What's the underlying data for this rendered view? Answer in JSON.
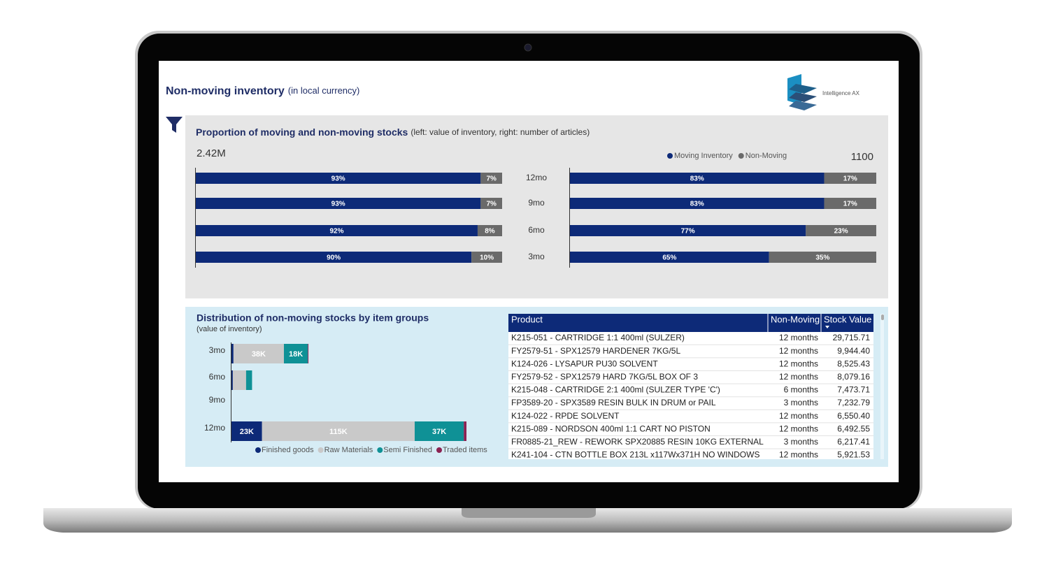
{
  "header": {
    "title": "Non-moving inventory",
    "subtitle": "(in local currency)",
    "logo_text": "Intelligence AX"
  },
  "chart_data": [
    {
      "type": "bar",
      "orientation": "horizontal",
      "stacked": true,
      "title": "Proportion of moving and non-moving stocks",
      "subtitle": "(left:  value of inventory, right: number of articles)",
      "total": {
        "value": 2420000,
        "label": "2.42M"
      },
      "categories": [
        "12mo",
        "9mo",
        "6mo",
        "3mo"
      ],
      "series": [
        {
          "name": "Moving Inventory",
          "color": "#0d2a78",
          "values": [
            93,
            93,
            92,
            90
          ],
          "value_labels": [
            "93%",
            "93%",
            "92%",
            "90%"
          ]
        },
        {
          "name": "Non-Moving",
          "color": "#6a6a6a",
          "values": [
            7,
            7,
            8,
            10
          ],
          "value_labels": [
            "7%",
            "7%",
            "8%",
            "10%"
          ]
        }
      ]
    },
    {
      "type": "bar",
      "orientation": "horizontal",
      "stacked": true,
      "total": 1100,
      "series": [
        {
          "color": "#0d2a78",
          "values": [
            83,
            83,
            77,
            65
          ],
          "value_labels": [
            "83%",
            "83%",
            "77%",
            "65%"
          ]
        },
        {
          "color": "#6a6a6a",
          "values": [
            17,
            17,
            23,
            35
          ],
          "value_labels": [
            "17%",
            "17%",
            "23%",
            "35%"
          ]
        }
      ]
    },
    {
      "type": "bar",
      "orientation": "horizontal",
      "stacked": true,
      "title": "Distribution of non-moving stocks by item groups",
      "subtitle": "(value of inventory)",
      "categories": [
        "3mo",
        "6mo",
        "9mo",
        "12mo"
      ],
      "series": [
        {
          "name": "Finished goods",
          "color": "#0d2a78",
          "values": [
            1.5,
            1,
            null,
            23
          ],
          "value_labels": [
            null,
            null,
            null,
            "23K"
          ]
        },
        {
          "name": "Raw Materials",
          "color": "#c9c9c9",
          "values": [
            38,
            10,
            null,
            115
          ],
          "value_labels": [
            "38K",
            null,
            null,
            "115K"
          ]
        },
        {
          "name": "Semi Finished",
          "color": "#0f9196",
          "values": [
            18,
            4.5,
            null,
            37
          ],
          "value_labels": [
            "18K",
            null,
            null,
            "37K"
          ]
        },
        {
          "name": "Traded items",
          "color": "#8b2252",
          "values": [
            0.5,
            null,
            null,
            2
          ],
          "value_labels": [
            null,
            null,
            null,
            null
          ]
        }
      ]
    }
  ],
  "table": {
    "columns": [
      "Product",
      "Non-Moving",
      "Stock Value"
    ],
    "rows": [
      [
        "K215-051 - CARTRIDGE 1:1 400ml (SULZER)",
        "12 months",
        "29,715.71"
      ],
      [
        "FY2579-51 - SPX12579 HARDENER 7KG/5L",
        "12 months",
        "9,944.40"
      ],
      [
        "K124-026 - LYSAPUR PU30 SOLVENT",
        "12 months",
        "8,525.43"
      ],
      [
        "FY2579-52 - SPX12579 HARD 7KG/5L BOX OF 3",
        "12 months",
        "8,079.16"
      ],
      [
        "K215-048 - CARTRIDGE 2:1 400ml (SULZER TYPE 'C')",
        "6 months",
        "7,473.71"
      ],
      [
        "FP3589-20 - SPX3589 RESIN BULK IN DRUM or PAIL",
        "3 months",
        "7,232.79"
      ],
      [
        "K124-022 - RPDE SOLVENT",
        "12 months",
        "6,550.40"
      ],
      [
        "K215-089 - NORDSON 400ml 1:1 CART NO PISTON",
        "12 months",
        "6,492.55"
      ],
      [
        "FR0885-21_REW - REWORK SPX20885 RESIN 10KG EXTERNAL",
        "3 months",
        "6,217.41"
      ],
      [
        "K241-104 - CTN BOTTLE BOX 213L x117Wx371H NO WINDOWS",
        "12 months",
        "5,921.53"
      ]
    ]
  }
}
